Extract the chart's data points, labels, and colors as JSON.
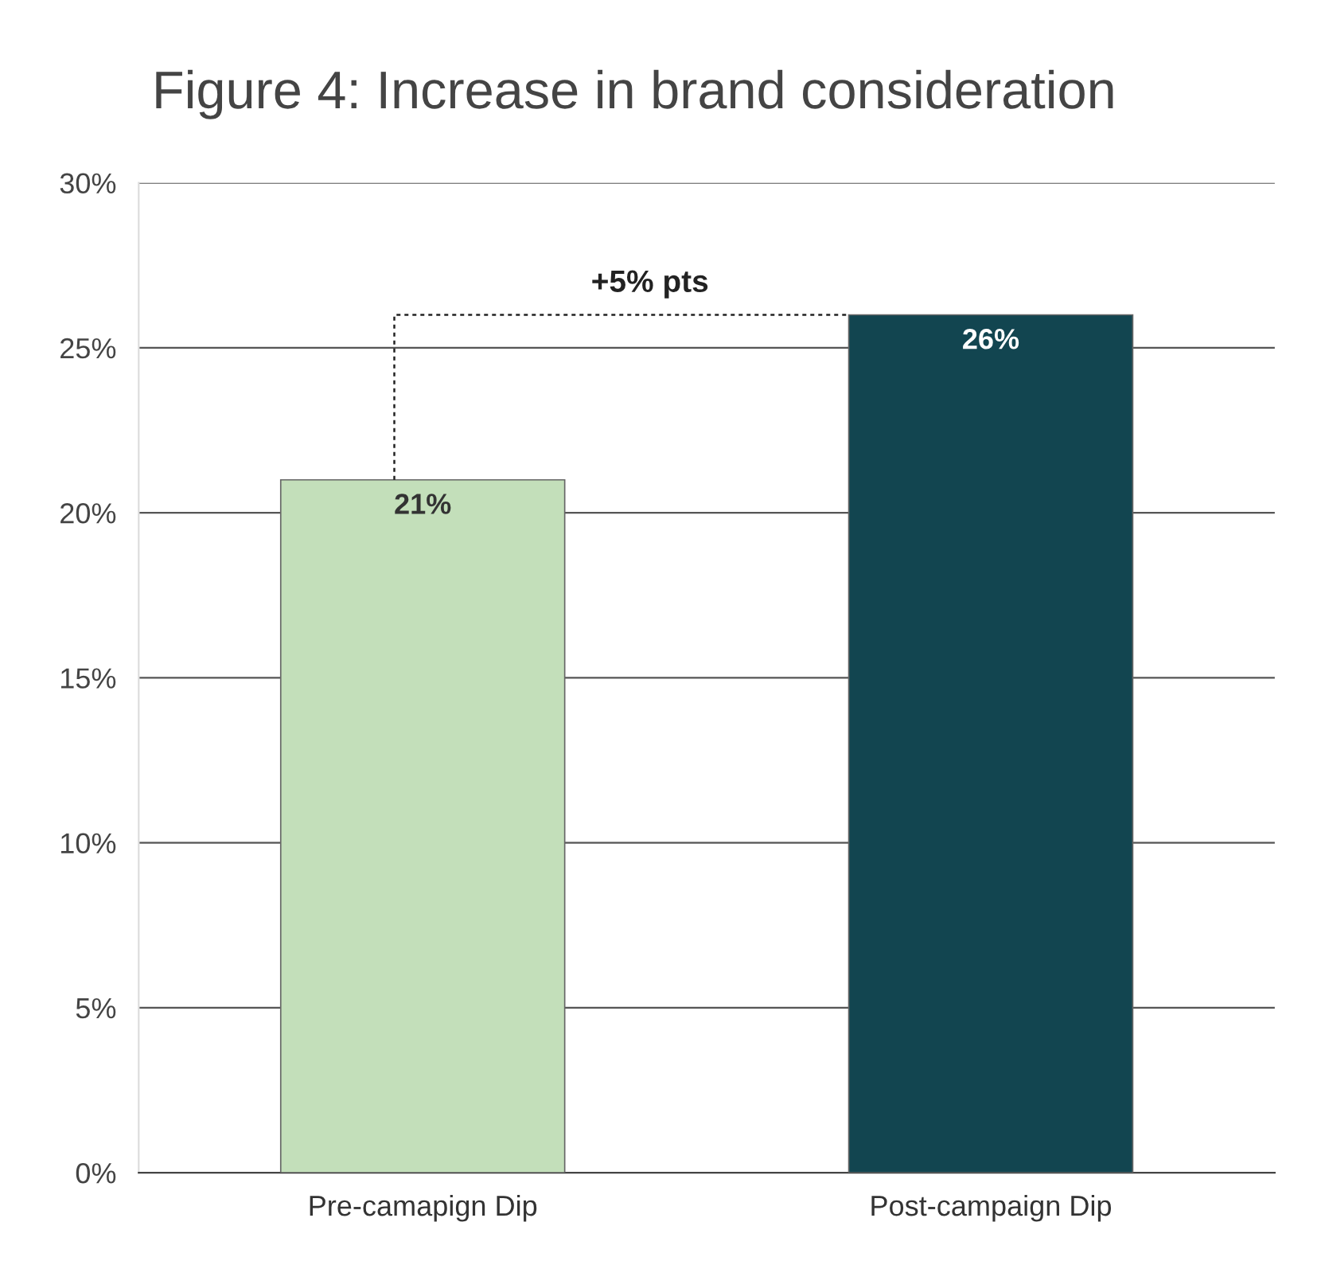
{
  "chart_data": {
    "type": "bar",
    "title": "Figure 4: Increase in brand consideration",
    "categories": [
      "Pre-camapign Dip",
      "Post-campaign Dip"
    ],
    "values": [
      21,
      26
    ],
    "colors": [
      "#c3dfba",
      "#124550"
    ],
    "value_labels": [
      "21%",
      "26%"
    ],
    "ylim": [
      0,
      30
    ],
    "yticks": [
      {
        "value": 0,
        "label": "0%"
      },
      {
        "value": 5,
        "label": "5%"
      },
      {
        "value": 10,
        "label": "10%"
      },
      {
        "value": 15,
        "label": "15%"
      },
      {
        "value": 20,
        "label": "20%"
      },
      {
        "value": 25,
        "label": "25%"
      },
      {
        "value": 30,
        "label": "30%"
      }
    ],
    "grid": "y",
    "annotations": [
      "+5% pts"
    ]
  }
}
